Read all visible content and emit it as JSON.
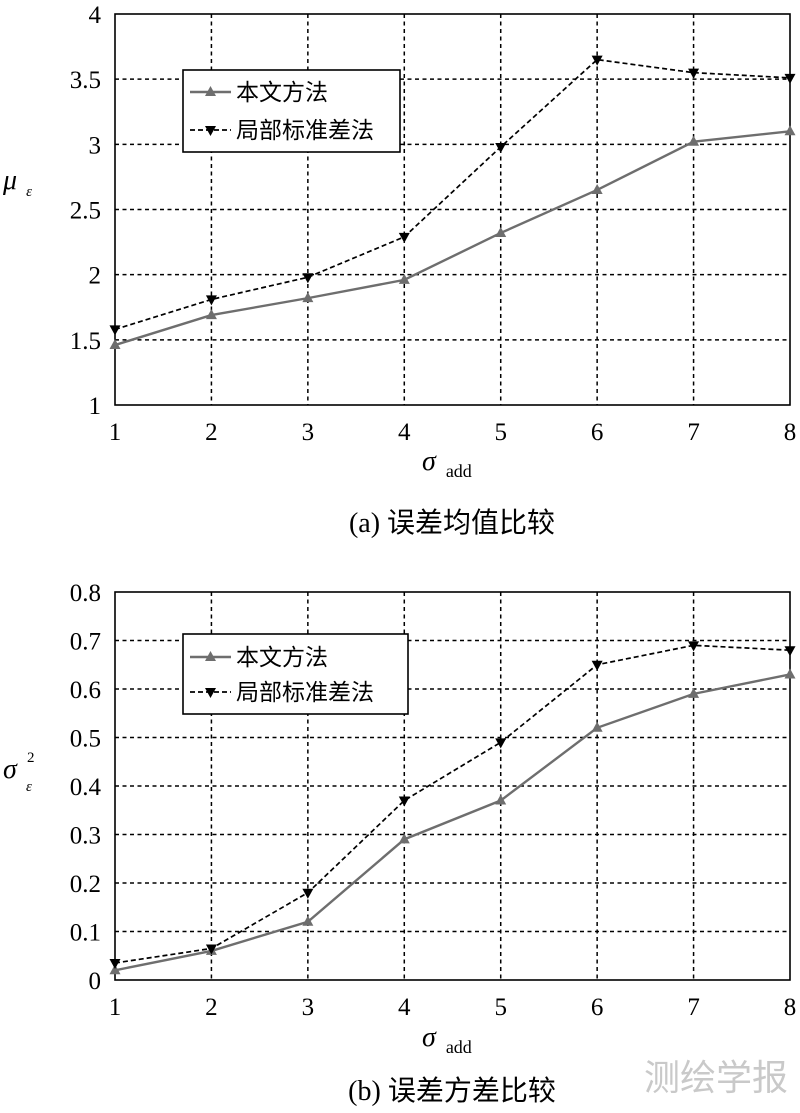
{
  "chart_data": [
    {
      "type": "line",
      "caption": "(a) 误差均值比较",
      "xlabel": {
        "symbol": "σ",
        "sub": "add"
      },
      "ylabel": {
        "symbol": "μ",
        "sub": "ε"
      },
      "x": [
        1,
        2,
        3,
        4,
        5,
        6,
        7,
        8
      ],
      "xlim": [
        1,
        8
      ],
      "ylim": [
        1,
        4
      ],
      "xticks": [
        "1",
        "2",
        "3",
        "4",
        "5",
        "6",
        "7",
        "8"
      ],
      "yticks": [
        "1",
        "1.5",
        "2",
        "2.5",
        "3",
        "3.5",
        "4"
      ],
      "grid": true,
      "legend": "upper-left",
      "series": [
        {
          "name": "本文方法",
          "values": [
            1.46,
            1.69,
            1.82,
            1.96,
            2.32,
            2.65,
            3.02,
            3.1
          ],
          "color": "#6e6e6e",
          "dashed": false,
          "marker": "triangle-up"
        },
        {
          "name": "局部标准差法",
          "values": [
            1.58,
            1.81,
            1.98,
            2.29,
            2.98,
            3.65,
            3.55,
            3.51
          ],
          "color": "#000000",
          "dashed": true,
          "marker": "triangle-down"
        }
      ]
    },
    {
      "type": "line",
      "caption": "(b) 误差方差比较",
      "xlabel": {
        "symbol": "σ",
        "sub": "add"
      },
      "ylabel": {
        "symbol": "σ",
        "sup": "2",
        "sub": "ε"
      },
      "x": [
        1,
        2,
        3,
        4,
        5,
        6,
        7,
        8
      ],
      "xlim": [
        1,
        8
      ],
      "ylim": [
        0,
        0.8
      ],
      "xticks": [
        "1",
        "2",
        "3",
        "4",
        "5",
        "6",
        "7",
        "8"
      ],
      "yticks": [
        "0",
        "0.1",
        "0.2",
        "0.3",
        "0.4",
        "0.5",
        "0.6",
        "0.7",
        "0.8"
      ],
      "grid": true,
      "legend": "upper-left",
      "series": [
        {
          "name": "本文方法",
          "values": [
            0.02,
            0.06,
            0.12,
            0.29,
            0.37,
            0.52,
            0.59,
            0.63
          ],
          "color": "#6e6e6e",
          "dashed": false,
          "marker": "triangle-up"
        },
        {
          "name": "局部标准差法",
          "values": [
            0.035,
            0.065,
            0.18,
            0.37,
            0.49,
            0.65,
            0.69,
            0.68
          ],
          "color": "#000000",
          "dashed": true,
          "marker": "triangle-down"
        }
      ]
    }
  ],
  "watermark": "测绘学报"
}
